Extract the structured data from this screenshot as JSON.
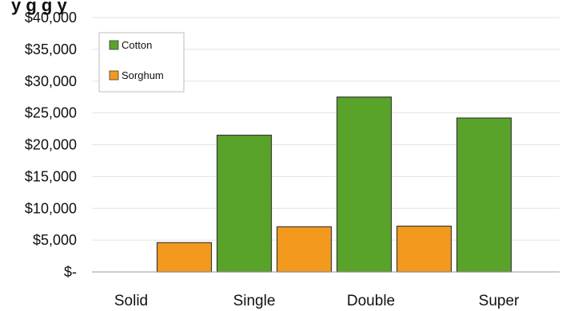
{
  "title_fragment": "y g g y",
  "chart_data": {
    "type": "bar",
    "title": "",
    "xlabel": "",
    "ylabel": "",
    "categories": [
      "Solid",
      "Single",
      "Double",
      "Super"
    ],
    "series": [
      {
        "name": "Cotton",
        "color": "#5aa32a",
        "values": [
          0,
          21500,
          27500,
          24200
        ]
      },
      {
        "name": "Sorghum",
        "color": "#f39a1e",
        "values": [
          4600,
          7100,
          7200,
          0
        ]
      }
    ],
    "ylim": [
      0,
      40000
    ],
    "yticks": [
      0,
      5000,
      10000,
      15000,
      20000,
      25000,
      30000,
      35000,
      40000
    ],
    "ytick_labels": [
      "$-",
      "$5,000",
      "$10,000",
      "$15,000",
      "$20,000",
      "$25,000",
      "$30,000",
      "$35,000",
      "$40,000"
    ],
    "grid": true,
    "legend_position": "top-left"
  }
}
